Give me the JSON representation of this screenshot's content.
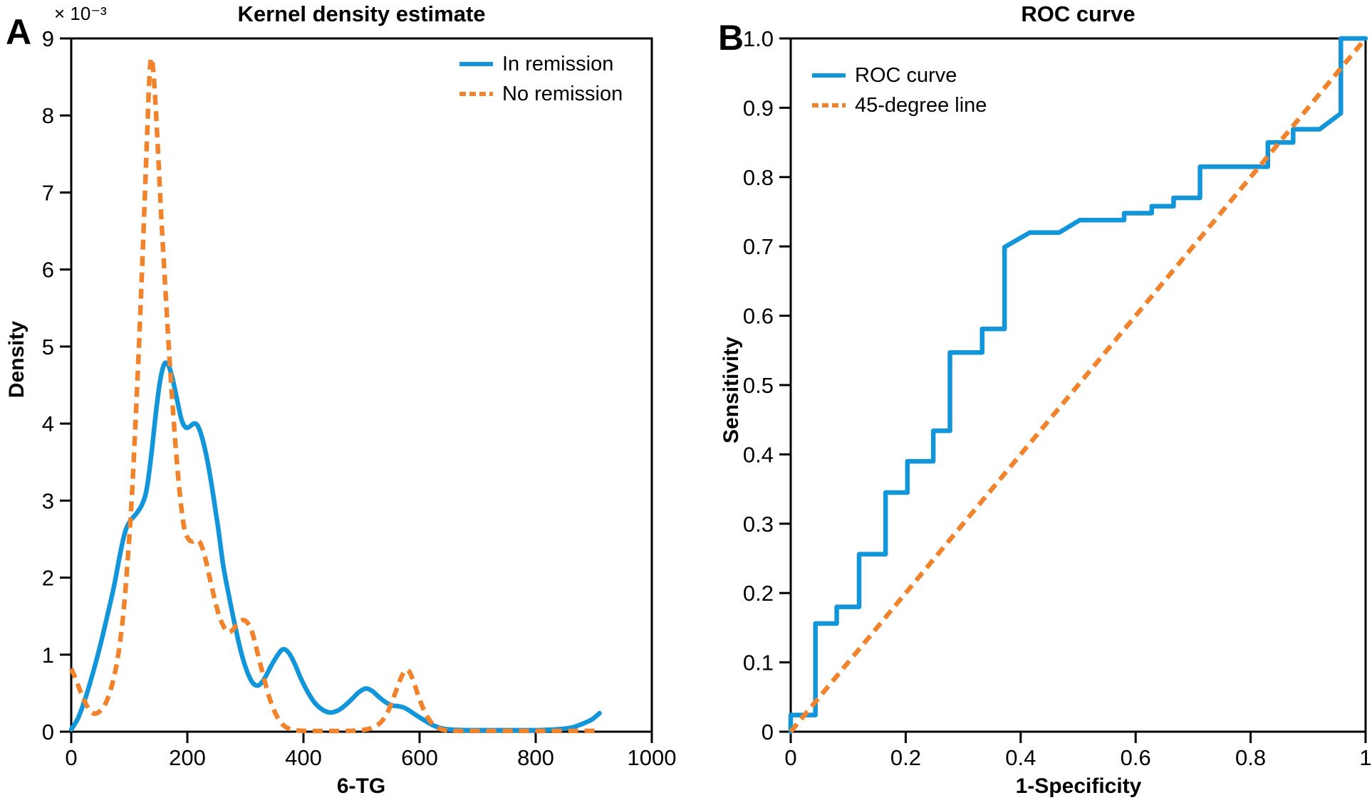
{
  "figure": {
    "background": "#ffffff",
    "frame_color": "#000000",
    "panel_letters": {
      "a": "A",
      "b": "B"
    },
    "kde_panel": {
      "title": "Kernel density estimate",
      "y_multiplier": "× 10⁻³",
      "xlabel": "6-TG",
      "ylabel": "Density",
      "legend": [
        {
          "label": "In remission",
          "style": "solid",
          "color": "#1295D9"
        },
        {
          "label": "No remission",
          "style": "dashed",
          "color": "#F1832C"
        }
      ]
    },
    "roc_panel": {
      "title": "ROC curve",
      "xlabel": "1-Specificity",
      "ylabel": "Sensitivity",
      "legend": [
        {
          "label": "ROC curve",
          "style": "solid",
          "color": "#1295D9"
        },
        {
          "label": "45-degree line",
          "style": "dashed",
          "color": "#F1832C"
        }
      ]
    }
  },
  "chart_data": [
    {
      "type": "line",
      "panel": "A",
      "title": "Kernel density estimate",
      "xlabel": "6-TG",
      "ylabel": "Density",
      "y_unit_multiplier": "1e-3",
      "xlim": [
        0,
        1000
      ],
      "ylim": [
        0,
        9
      ],
      "grid": false,
      "legend_position": "top-right-inside",
      "x_ticks": {
        "values": [
          0,
          200,
          400,
          600,
          800,
          1000
        ],
        "labels": [
          "0",
          "200",
          "400",
          "600",
          "800",
          "1000"
        ]
      },
      "y_ticks": {
        "values": [
          0,
          1,
          2,
          3,
          4,
          5,
          6,
          7,
          8,
          9
        ],
        "labels": [
          "0",
          "1",
          "2",
          "3",
          "4",
          "5",
          "6",
          "7",
          "8",
          "9"
        ]
      },
      "series": [
        {
          "name": "In remission",
          "color": "#1295D9",
          "style": "solid",
          "smooth": true,
          "points": [
            [
              0,
              0.03
            ],
            [
              12,
              0.18
            ],
            [
              25,
              0.45
            ],
            [
              38,
              0.78
            ],
            [
              50,
              1.12
            ],
            [
              62,
              1.5
            ],
            [
              74,
              1.9
            ],
            [
              84,
              2.3
            ],
            [
              93,
              2.6
            ],
            [
              102,
              2.74
            ],
            [
              112,
              2.83
            ],
            [
              122,
              2.95
            ],
            [
              130,
              3.15
            ],
            [
              138,
              3.6
            ],
            [
              146,
              4.15
            ],
            [
              153,
              4.55
            ],
            [
              160,
              4.77
            ],
            [
              167,
              4.76
            ],
            [
              174,
              4.6
            ],
            [
              182,
              4.32
            ],
            [
              190,
              4.05
            ],
            [
              197,
              3.95
            ],
            [
              204,
              3.96
            ],
            [
              211,
              4.0
            ],
            [
              218,
              3.97
            ],
            [
              226,
              3.8
            ],
            [
              235,
              3.5
            ],
            [
              244,
              3.1
            ],
            [
              253,
              2.65
            ],
            [
              262,
              2.15
            ],
            [
              272,
              1.75
            ],
            [
              282,
              1.38
            ],
            [
              292,
              1.05
            ],
            [
              302,
              0.8
            ],
            [
              312,
              0.64
            ],
            [
              322,
              0.6
            ],
            [
              332,
              0.68
            ],
            [
              344,
              0.85
            ],
            [
              356,
              1.0
            ],
            [
              365,
              1.07
            ],
            [
              375,
              1.02
            ],
            [
              385,
              0.88
            ],
            [
              395,
              0.7
            ],
            [
              407,
              0.52
            ],
            [
              419,
              0.38
            ],
            [
              432,
              0.29
            ],
            [
              445,
              0.25
            ],
            [
              458,
              0.27
            ],
            [
              470,
              0.33
            ],
            [
              483,
              0.42
            ],
            [
              495,
              0.51
            ],
            [
              507,
              0.56
            ],
            [
              518,
              0.53
            ],
            [
              530,
              0.45
            ],
            [
              542,
              0.38
            ],
            [
              553,
              0.34
            ],
            [
              564,
              0.33
            ],
            [
              574,
              0.31
            ],
            [
              585,
              0.26
            ],
            [
              597,
              0.2
            ],
            [
              610,
              0.14
            ],
            [
              624,
              0.08
            ],
            [
              640,
              0.04
            ],
            [
              658,
              0.025
            ],
            [
              680,
              0.02
            ],
            [
              720,
              0.02
            ],
            [
              760,
              0.02
            ],
            [
              800,
              0.02
            ],
            [
              835,
              0.03
            ],
            [
              860,
              0.05
            ],
            [
              880,
              0.1
            ],
            [
              897,
              0.16
            ],
            [
              910,
              0.24
            ]
          ]
        },
        {
          "name": "No remission",
          "color": "#F1832C",
          "style": "dashed",
          "smooth": true,
          "points": [
            [
              0,
              0.82
            ],
            [
              8,
              0.68
            ],
            [
              17,
              0.5
            ],
            [
              26,
              0.35
            ],
            [
              34,
              0.26
            ],
            [
              42,
              0.235
            ],
            [
              50,
              0.27
            ],
            [
              58,
              0.35
            ],
            [
              66,
              0.5
            ],
            [
              74,
              0.72
            ],
            [
              82,
              1.05
            ],
            [
              90,
              1.55
            ],
            [
              97,
              2.2
            ],
            [
              104,
              3.0
            ],
            [
              110,
              3.9
            ],
            [
              116,
              4.9
            ],
            [
              122,
              6.0
            ],
            [
              127,
              7.0
            ],
            [
              131,
              7.8
            ],
            [
              134,
              8.4
            ],
            [
              137,
              8.72
            ],
            [
              140,
              8.68
            ],
            [
              144,
              8.3
            ],
            [
              149,
              7.6
            ],
            [
              155,
              6.7
            ],
            [
              161,
              5.9
            ],
            [
              168,
              5.0
            ],
            [
              175,
              4.2
            ],
            [
              182,
              3.5
            ],
            [
              189,
              2.95
            ],
            [
              195,
              2.63
            ],
            [
              202,
              2.5
            ],
            [
              209,
              2.47
            ],
            [
              216,
              2.49
            ],
            [
              223,
              2.44
            ],
            [
              231,
              2.25
            ],
            [
              239,
              1.98
            ],
            [
              247,
              1.72
            ],
            [
              255,
              1.5
            ],
            [
              263,
              1.36
            ],
            [
              271,
              1.29
            ],
            [
              279,
              1.33
            ],
            [
              288,
              1.42
            ],
            [
              296,
              1.45
            ],
            [
              304,
              1.41
            ],
            [
              312,
              1.28
            ],
            [
              321,
              1.02
            ],
            [
              331,
              0.72
            ],
            [
              341,
              0.45
            ],
            [
              351,
              0.25
            ],
            [
              361,
              0.12
            ],
            [
              372,
              0.05
            ],
            [
              385,
              0.02
            ],
            [
              405,
              0.01
            ],
            [
              440,
              0.01
            ],
            [
              475,
              0.01
            ],
            [
              500,
              0.02
            ],
            [
              518,
              0.05
            ],
            [
              533,
              0.12
            ],
            [
              546,
              0.27
            ],
            [
              558,
              0.5
            ],
            [
              568,
              0.7
            ],
            [
              576,
              0.8
            ],
            [
              583,
              0.77
            ],
            [
              591,
              0.62
            ],
            [
              600,
              0.42
            ],
            [
              610,
              0.24
            ],
            [
              620,
              0.12
            ],
            [
              631,
              0.05
            ],
            [
              644,
              0.02
            ],
            [
              662,
              0.01
            ],
            [
              700,
              0.01
            ],
            [
              750,
              0.01
            ],
            [
              800,
              0.01
            ],
            [
              850,
              0.01
            ],
            [
              885,
              0.01
            ],
            [
              905,
              0.01
            ]
          ]
        }
      ]
    },
    {
      "type": "line",
      "panel": "B",
      "title": "ROC curve",
      "xlabel": "1-Specificity",
      "ylabel": "Sensitivity",
      "xlim": [
        0,
        1
      ],
      "ylim": [
        0,
        1
      ],
      "grid": false,
      "legend_position": "top-left-inside",
      "x_ticks": {
        "values": [
          0,
          0.2,
          0.4,
          0.6,
          0.8,
          1
        ],
        "labels": [
          "0",
          "0.2",
          "0.4",
          "0.6",
          "0.8",
          "1"
        ]
      },
      "y_ticks": {
        "values": [
          0,
          0.1,
          0.2,
          0.3,
          0.4,
          0.5,
          0.6,
          0.7,
          0.8,
          0.9,
          1.0
        ],
        "labels": [
          "0",
          "0.1",
          "0.2",
          "0.3",
          "0.4",
          "0.5",
          "0.6",
          "0.7",
          "0.8",
          "0.9",
          "1.0"
        ]
      },
      "series": [
        {
          "name": "ROC curve",
          "color": "#1295D9",
          "style": "solid",
          "smooth": false,
          "points": [
            [
              0,
              0
            ],
            [
              0,
              0.024
            ],
            [
              0.043,
              0.024
            ],
            [
              0.043,
              0.156
            ],
            [
              0.08,
              0.156
            ],
            [
              0.08,
              0.18
            ],
            [
              0.119,
              0.18
            ],
            [
              0.119,
              0.256
            ],
            [
              0.165,
              0.256
            ],
            [
              0.165,
              0.345
            ],
            [
              0.203,
              0.345
            ],
            [
              0.203,
              0.39
            ],
            [
              0.248,
              0.39
            ],
            [
              0.248,
              0.434
            ],
            [
              0.277,
              0.434
            ],
            [
              0.277,
              0.547
            ],
            [
              0.333,
              0.547
            ],
            [
              0.333,
              0.581
            ],
            [
              0.372,
              0.581
            ],
            [
              0.372,
              0.699
            ],
            [
              0.416,
              0.72
            ],
            [
              0.467,
              0.72
            ],
            [
              0.503,
              0.738
            ],
            [
              0.58,
              0.738
            ],
            [
              0.58,
              0.748
            ],
            [
              0.628,
              0.748
            ],
            [
              0.628,
              0.758
            ],
            [
              0.666,
              0.758
            ],
            [
              0.666,
              0.77
            ],
            [
              0.712,
              0.77
            ],
            [
              0.712,
              0.815
            ],
            [
              0.83,
              0.815
            ],
            [
              0.83,
              0.85
            ],
            [
              0.874,
              0.85
            ],
            [
              0.874,
              0.869
            ],
            [
              0.92,
              0.869
            ],
            [
              0.957,
              0.892
            ],
            [
              0.957,
              1.0
            ],
            [
              1.0,
              1.0
            ]
          ]
        },
        {
          "name": "45-degree line",
          "color": "#F1832C",
          "style": "dashed",
          "smooth": false,
          "points": [
            [
              0,
              0
            ],
            [
              1,
              1
            ]
          ]
        }
      ]
    }
  ]
}
